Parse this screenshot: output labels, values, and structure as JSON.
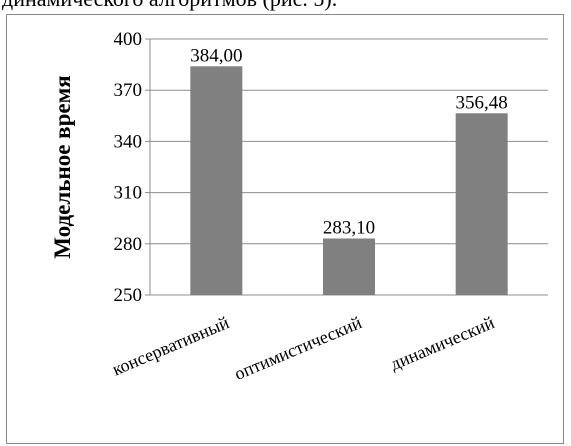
{
  "caption": "динамического алгоритмов (рис. 5).",
  "chart_data": {
    "type": "bar",
    "title": "",
    "xlabel": "",
    "ylabel": "Модельное время",
    "categories": [
      "консервативный",
      "оптимистический",
      "динамический"
    ],
    "values": [
      384.0,
      283.1,
      356.48
    ],
    "data_labels": [
      "384,00",
      "283,10",
      "356,48"
    ],
    "yticks": [
      "250",
      "280",
      "310",
      "340",
      "370",
      "400"
    ],
    "ylim": [
      250,
      400
    ],
    "grid": true,
    "legend": "none",
    "bar_color": "#808080",
    "grid_color": "#8c8c8c"
  }
}
